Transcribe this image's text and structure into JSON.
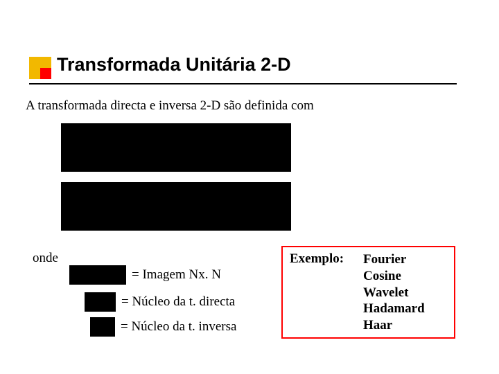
{
  "title": "Transformada Unitária 2-D",
  "intro": "A transformada directa e inversa 2-D são  definida com",
  "onde_label": "onde",
  "definitions": {
    "d1": "= Imagem Nx. N",
    "d2": "= Núcleo da t. directa",
    "d3": "= Núcleo da t. inversa"
  },
  "exemplo": {
    "label": "Exemplo:",
    "items": [
      "Fourier",
      "Cosine",
      "Wavelet",
      "Hadamard",
      "Haar"
    ]
  },
  "colors": {
    "bullet_outer": "#f2b800",
    "bullet_inner": "#ff0000",
    "text": "#000000",
    "border_exemplo": "#ff0000",
    "formula_bg": "#000000"
  }
}
